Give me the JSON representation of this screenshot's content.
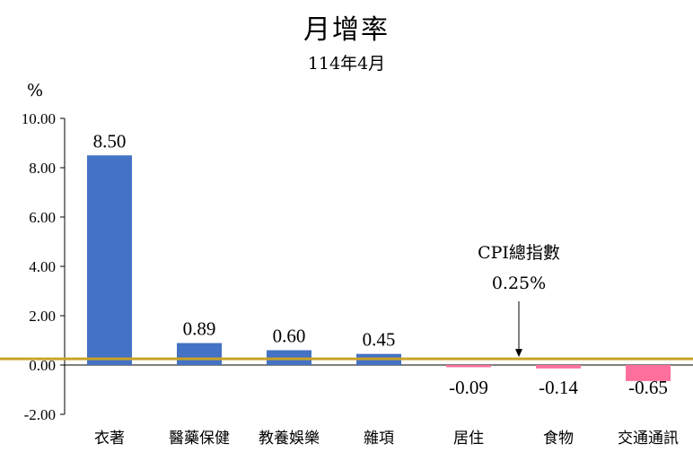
{
  "chart_data": {
    "type": "bar",
    "title": "月增率",
    "subtitle": "114年4月",
    "ylabel": "%",
    "categories": [
      "衣著",
      "醫藥保健",
      "教養娛樂",
      "雜項",
      "居住",
      "食物",
      "交通通訊"
    ],
    "values": [
      8.5,
      0.89,
      0.6,
      0.45,
      -0.09,
      -0.14,
      -0.65
    ],
    "value_labels": [
      "8.50",
      "0.89",
      "0.60",
      "0.45",
      "-0.09",
      "-0.14",
      "-0.65"
    ],
    "ylim": [
      -2.0,
      10.0
    ],
    "yticks": [
      "10.00",
      "8.00",
      "6.00",
      "4.00",
      "2.00",
      "0.00",
      "-2.00"
    ],
    "ytick_values": [
      10,
      8,
      6,
      4,
      2,
      0,
      -2
    ],
    "reference_line": {
      "value": 0.25,
      "label": "CPI總指數",
      "value_label": "0.25%",
      "color": "#C9A227"
    },
    "positive_color": "#4472C4",
    "negative_color": "#FF6F9C",
    "grid": false,
    "legend": "none"
  }
}
